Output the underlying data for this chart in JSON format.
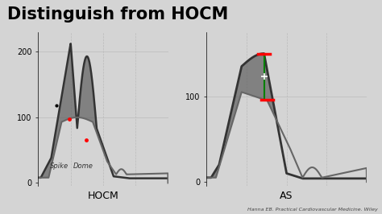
{
  "title": "Distinguish from HOCM",
  "title_fontsize": 15,
  "title_fontweight": "bold",
  "bg_color": "#d4d4d4",
  "plot_bg": "#d4d4d4",
  "footnote": "Hanna EB. Practical Cardiovascular Medicine. Wiley",
  "hocm_label": "HOCM",
  "as_label": "AS",
  "spike_label": "Spike",
  "dome_label": "Dome",
  "hocm_yticks": [
    0,
    100,
    200
  ],
  "as_yticks": [
    0,
    100
  ],
  "grid_color": "#bbbbbb",
  "lv_color": "#333333",
  "ao_color": "#666666",
  "fill_color": "#555555",
  "fill_alpha": 0.65
}
